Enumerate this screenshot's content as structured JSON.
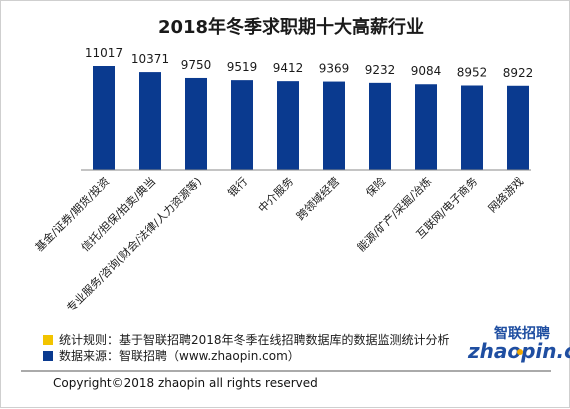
{
  "chart_data": {
    "type": "bar",
    "title": "2018年冬季求职期十大高薪行业",
    "categories": [
      "基金/证券/期货/投资",
      "信托/担保/拍卖/典当",
      "专业服务/咨询(财会/法律/人力资源等)",
      "银行",
      "中介服务",
      "跨领域经营",
      "保险",
      "能源/矿产/采掘/冶炼",
      "互联网/电子商务",
      "网络游戏"
    ],
    "values": [
      11017,
      10371,
      9750,
      9519,
      9412,
      9369,
      9232,
      9084,
      8952,
      8922
    ],
    "value_labels": [
      "11017",
      "10371",
      "9750",
      "9519",
      "9412",
      "9369",
      "9232",
      "9084",
      "8952",
      "8922"
    ],
    "ylim": [
      0,
      12000
    ],
    "bar_color": "#0a3a8f",
    "grid": false
  },
  "legend": [
    {
      "marker_color": "#f2c400",
      "text": "统计规则：基于智联招聘2018年冬季在线招聘数据库的数据监测统计分析"
    },
    {
      "marker_color": "#0a3a8f",
      "text": "数据来源：智联招聘（www.zhaopin.com）"
    }
  ],
  "copyright": "Copyright©2018 zhaopin all rights reserved",
  "logo": {
    "chinese": "智联招聘",
    "english": "zhaopin.com",
    "accent_color": "#f2a900",
    "brand_color": "#1f4ea1"
  }
}
